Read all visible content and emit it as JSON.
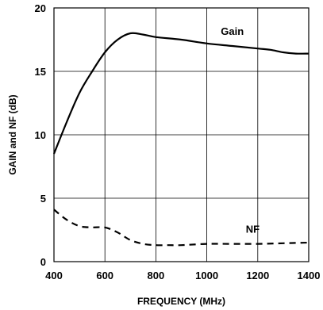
{
  "chart_data": {
    "type": "line",
    "xlabel": "FREQUENCY (MHz)",
    "ylabel": "GAIN and NF (dB)",
    "xlim": [
      400,
      1400
    ],
    "ylim": [
      0,
      20
    ],
    "xticks": [
      400,
      600,
      800,
      1000,
      1200,
      1400
    ],
    "yticks": [
      0,
      5,
      10,
      15,
      20
    ],
    "xtick_labels": [
      "400",
      "600",
      "800",
      "1000",
      "1200",
      "1400"
    ],
    "ytick_labels": [
      "0",
      "5",
      "10",
      "15",
      "20"
    ],
    "grid": true,
    "series": [
      {
        "name": "Gain",
        "line_style": "solid",
        "color": "#000000",
        "x": [
          400,
          450,
          500,
          550,
          600,
          650,
          700,
          750,
          800,
          900,
          1000,
          1100,
          1200,
          1250,
          1300,
          1350,
          1400
        ],
        "y": [
          8.5,
          11.0,
          13.3,
          15.0,
          16.5,
          17.5,
          18.0,
          17.9,
          17.7,
          17.5,
          17.2,
          17.0,
          16.8,
          16.7,
          16.5,
          16.4,
          16.4
        ]
      },
      {
        "name": "NF",
        "line_style": "dashed",
        "color": "#000000",
        "x": [
          400,
          450,
          500,
          550,
          600,
          650,
          700,
          750,
          800,
          850,
          900,
          1000,
          1100,
          1200,
          1300,
          1400
        ],
        "y": [
          4.1,
          3.3,
          2.8,
          2.7,
          2.7,
          2.3,
          1.7,
          1.4,
          1.3,
          1.3,
          1.3,
          1.4,
          1.4,
          1.4,
          1.45,
          1.5
        ]
      }
    ]
  }
}
